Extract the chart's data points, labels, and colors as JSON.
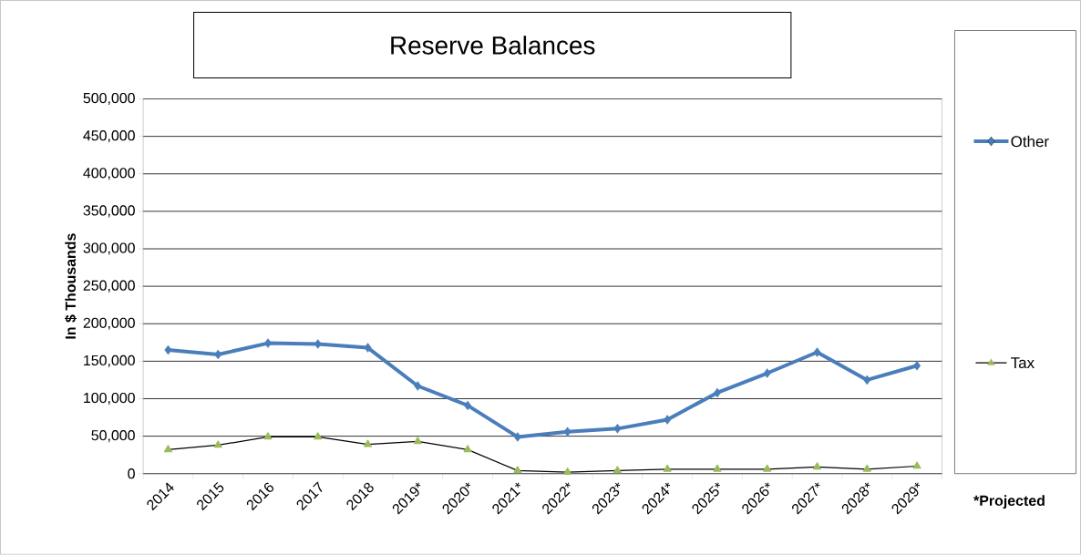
{
  "chart_data": {
    "type": "line",
    "title": "Reserve Balances",
    "ylabel": "In $ Thousands",
    "categories": [
      "2014",
      "2015",
      "2016",
      "2017",
      "2018",
      "2019*",
      "2020*",
      "2021*",
      "2022*",
      "2023*",
      "2024*",
      "2025*",
      "2026*",
      "2027*",
      "2028*",
      "2029*"
    ],
    "series": [
      {
        "name": "Other",
        "color": "#4a7ebb",
        "marker": "diamond",
        "values": [
          165000,
          159000,
          174000,
          173000,
          168000,
          117000,
          91000,
          49000,
          56000,
          60000,
          72000,
          108000,
          134000,
          162000,
          125000,
          144000
        ]
      },
      {
        "name": "Tax",
        "color": "#9bbb59",
        "marker": "triangle",
        "values": [
          32000,
          38000,
          49000,
          49000,
          39000,
          43000,
          32000,
          4000,
          2000,
          4000,
          6000,
          6000,
          6000,
          9000,
          6000,
          10000
        ]
      }
    ],
    "ylim": [
      0,
      500000
    ],
    "yticks": [
      0,
      {
        "value": 50000,
        "label": "50,000"
      },
      {
        "value": 100000,
        "label": "100,000"
      },
      {
        "value": 150000,
        "label": "150,000"
      },
      {
        "value": 200000,
        "label": "200,000"
      },
      {
        "value": 250000,
        "label": "250,000"
      },
      {
        "value": 300000,
        "label": "300,000"
      },
      {
        "value": 350000,
        "label": "350,000"
      },
      {
        "value": 400000,
        "label": "400,000"
      },
      {
        "value": 450000,
        "label": "450,000"
      },
      {
        "value": 500000,
        "label": "500,000"
      }
    ],
    "grid": "y",
    "legend": "right",
    "annotations": [
      "*Projected"
    ]
  }
}
